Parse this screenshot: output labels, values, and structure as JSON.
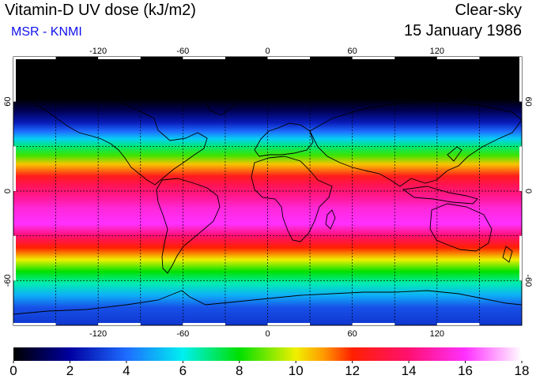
{
  "header": {
    "title": "Vitamin-D UV dose (kJ/m2)",
    "subtitle": "MSR - KNMI",
    "condition": "Clear-sky",
    "date": "15 January 1986"
  },
  "map": {
    "projection": "equirectangular",
    "lon_range": [
      -180,
      180
    ],
    "lat_range": [
      -90,
      90
    ],
    "grid_lon_step": 30,
    "grid_lat_step": 30,
    "lon_ticks": [
      -120,
      -60,
      0,
      60,
      120
    ],
    "lon_tick_labels": [
      "-120",
      "-60",
      "0",
      "60",
      "120"
    ],
    "lat_ticks": [
      60,
      0,
      -60
    ],
    "lat_tick_labels": [
      "60",
      "0",
      "-60"
    ],
    "field_by_latitude": [
      {
        "lat": 90,
        "value": 0
      },
      {
        "lat": 62,
        "value": 0
      },
      {
        "lat": 54,
        "value": 1
      },
      {
        "lat": 46,
        "value": 2.5
      },
      {
        "lat": 40,
        "value": 4
      },
      {
        "lat": 35,
        "value": 5.5
      },
      {
        "lat": 30,
        "value": 7
      },
      {
        "lat": 24,
        "value": 8.5
      },
      {
        "lat": 18,
        "value": 10.5
      },
      {
        "lat": 10,
        "value": 12.5
      },
      {
        "lat": 4,
        "value": 13.5
      },
      {
        "lat": -4,
        "value": 14.5
      },
      {
        "lat": -12,
        "value": 15.5
      },
      {
        "lat": -22,
        "value": 16
      },
      {
        "lat": -30,
        "value": 14
      },
      {
        "lat": -38,
        "value": 12
      },
      {
        "lat": -46,
        "value": 10
      },
      {
        "lat": -54,
        "value": 8
      },
      {
        "lat": -62,
        "value": 6.5
      },
      {
        "lat": -70,
        "value": 5
      },
      {
        "lat": -78,
        "value": 3.5
      },
      {
        "lat": -90,
        "value": 3
      }
    ]
  },
  "colorbar": {
    "min": 0,
    "max": 18,
    "ticks": [
      0,
      2,
      4,
      6,
      8,
      10,
      12,
      14,
      16,
      18
    ],
    "tick_labels": [
      "0",
      "2",
      "4",
      "6",
      "8",
      "10",
      "12",
      "14",
      "16",
      "18"
    ],
    "colors": [
      {
        "value": 0,
        "color": "#000000"
      },
      {
        "value": 2,
        "color": "#0000a0"
      },
      {
        "value": 4,
        "color": "#1e6cff"
      },
      {
        "value": 6,
        "color": "#00f0f0"
      },
      {
        "value": 8,
        "color": "#00e000"
      },
      {
        "value": 10,
        "color": "#f0f000"
      },
      {
        "value": 11,
        "color": "#ff9800"
      },
      {
        "value": 12,
        "color": "#ff2000"
      },
      {
        "value": 14,
        "color": "#ff1070"
      },
      {
        "value": 16,
        "color": "#ff30ff"
      },
      {
        "value": 18,
        "color": "#ffffff"
      }
    ]
  }
}
